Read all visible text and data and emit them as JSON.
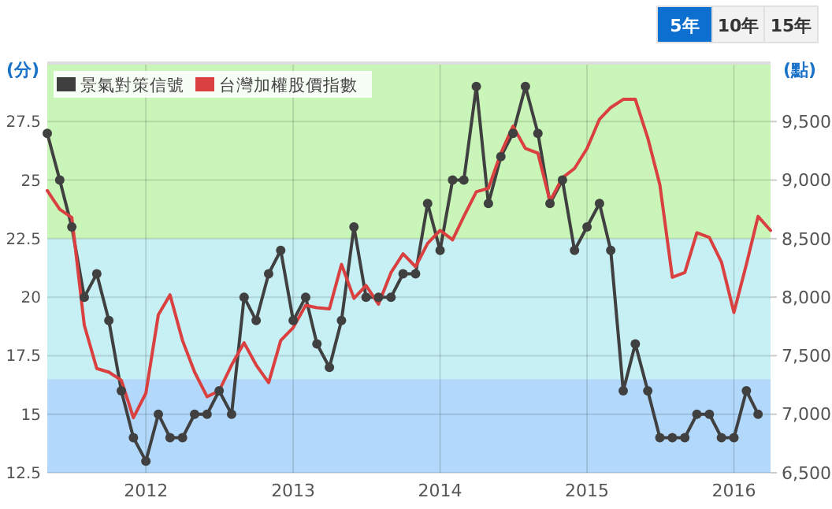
{
  "chart_data": {
    "type": "line",
    "ylabel": "(分)",
    "y2label": "(點)",
    "annotations": [
      "5年",
      "10年",
      "15年"
    ],
    "xlim": [
      "2011-05",
      "2016-04"
    ],
    "xticks": [
      "2012",
      "2013",
      "2014",
      "2015",
      "2016"
    ],
    "ylim": [
      12.5,
      30
    ],
    "yticks": [
      12.5,
      15,
      17.5,
      20,
      22.5,
      25,
      27.5
    ],
    "y2lim": [
      6500,
      10000
    ],
    "y2ticks": [
      {
        "value": 6500,
        "label": "6,500"
      },
      {
        "value": 7000,
        "label": "7,000"
      },
      {
        "value": 7500,
        "label": "7,500"
      },
      {
        "value": 8000,
        "label": "8,000"
      },
      {
        "value": 8500,
        "label": "8,500"
      },
      {
        "value": 9000,
        "label": "9,000"
      },
      {
        "value": 9500,
        "label": "9,500"
      }
    ],
    "grid": true,
    "legend": "top left",
    "line_style": "solid",
    "bands": [
      {
        "axis": "y",
        "from": 12.5,
        "to": 16.5,
        "color": "#b2d9fb"
      },
      {
        "axis": "y",
        "from": 16.5,
        "to": 22.5,
        "color": "#c6f0f4"
      },
      {
        "axis": "y",
        "from": 22.5,
        "to": 30,
        "color": "#caf5b9"
      }
    ],
    "series": [
      {
        "name": "景氣對策信號",
        "color": "#404040",
        "marker": "circle",
        "x": [
          "2011-05",
          "2011-06",
          "2011-07",
          "2011-08",
          "2011-09",
          "2011-10",
          "2011-11",
          "2011-12",
          "2012-01",
          "2012-02",
          "2012-03",
          "2012-04",
          "2012-05",
          "2012-06",
          "2012-07",
          "2012-08",
          "2012-09",
          "2012-10",
          "2012-11",
          "2012-12",
          "2013-01",
          "2013-02",
          "2013-03",
          "2013-04",
          "2013-05",
          "2013-06",
          "2013-07",
          "2013-08",
          "2013-09",
          "2013-10",
          "2013-11",
          "2013-12",
          "2014-01",
          "2014-02",
          "2014-03",
          "2014-04",
          "2014-05",
          "2014-06",
          "2014-07",
          "2014-08",
          "2014-09",
          "2014-10",
          "2014-11",
          "2014-12",
          "2015-01",
          "2015-02",
          "2015-03",
          "2015-04",
          "2015-05",
          "2015-06",
          "2015-07",
          "2015-08",
          "2015-09",
          "2015-10",
          "2015-11",
          "2015-12",
          "2016-01",
          "2016-02",
          "2016-03"
        ],
        "values": [
          27,
          25,
          23,
          20,
          21,
          19,
          16,
          14,
          13,
          15,
          14,
          14,
          15,
          15,
          16,
          15,
          20,
          19,
          21,
          22,
          19,
          20,
          18,
          17,
          19,
          23,
          20,
          20,
          20,
          21,
          21,
          24,
          22,
          25,
          25,
          29,
          24,
          26,
          27,
          29,
          27,
          24,
          25,
          22,
          23,
          24,
          22,
          16,
          18,
          16,
          14,
          14,
          14,
          15,
          15,
          14,
          14,
          16,
          15
        ]
      },
      {
        "name": "台灣加權股價指數",
        "color": "#d9403f",
        "marker": "none",
        "axis": "y2",
        "x": [
          "2011-05",
          "2011-06",
          "2011-07",
          "2011-08",
          "2011-09",
          "2011-10",
          "2011-11",
          "2011-12",
          "2012-01",
          "2012-02",
          "2012-03",
          "2012-04",
          "2012-05",
          "2012-06",
          "2012-07",
          "2012-08",
          "2012-09",
          "2012-10",
          "2012-11",
          "2012-12",
          "2013-01",
          "2013-02",
          "2013-03",
          "2013-04",
          "2013-05",
          "2013-06",
          "2013-07",
          "2013-08",
          "2013-09",
          "2013-10",
          "2013-11",
          "2013-12",
          "2014-01",
          "2014-02",
          "2014-03",
          "2014-04",
          "2014-05",
          "2014-06",
          "2014-07",
          "2014-08",
          "2014-09",
          "2014-10",
          "2014-11",
          "2014-12",
          "2015-01",
          "2015-02",
          "2015-03",
          "2015-04",
          "2015-05",
          "2015-06",
          "2015-07",
          "2015-08",
          "2015-09",
          "2015-10",
          "2015-11",
          "2015-12",
          "2016-01",
          "2016-02",
          "2016-03",
          "2016-04"
        ],
        "values": [
          8910,
          8750,
          8680,
          7760,
          7390,
          7360,
          7290,
          6970,
          7180,
          7850,
          8020,
          7630,
          7360,
          7150,
          7200,
          7420,
          7610,
          7420,
          7270,
          7630,
          7740,
          7930,
          7910,
          7900,
          8280,
          7990,
          8100,
          7940,
          8210,
          8370,
          8260,
          8460,
          8570,
          8490,
          8690,
          8900,
          8930,
          9230,
          9460,
          9270,
          9230,
          8820,
          9020,
          9100,
          9270,
          9520,
          9620,
          9690,
          9690,
          9360,
          8960,
          8170,
          8210,
          8550,
          8510,
          8300,
          7870,
          8280,
          8690,
          8570
        ]
      }
    ]
  }
}
